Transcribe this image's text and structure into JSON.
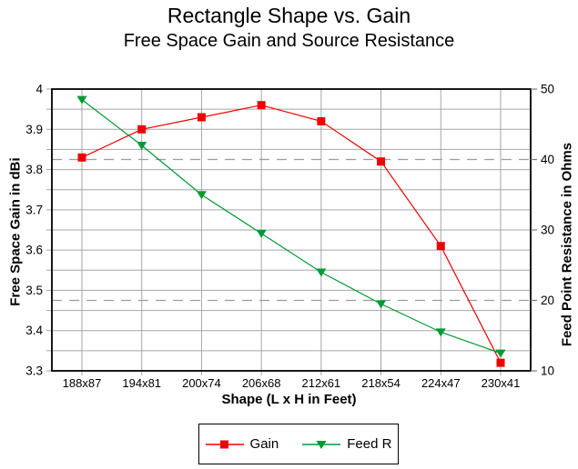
{
  "chart_data": {
    "type": "line",
    "title": "Rectangle Shape vs. Gain",
    "subtitle": "Free Space Gain and Source Resistance",
    "xlabel": "Shape (L x H in Feet)",
    "ylabel_left": "Free Space Gain in dBi",
    "ylabel_right": "Feed Point Resistance in Ohms",
    "categories": [
      "188x87",
      "194x81",
      "200x74",
      "206x68",
      "212x61",
      "218x54",
      "224x47",
      "230x41"
    ],
    "series": [
      {
        "name": "Gain",
        "axis": "left",
        "color": "#ee0000",
        "marker": "square",
        "values": [
          3.83,
          3.9,
          3.93,
          3.96,
          3.92,
          3.82,
          3.61,
          3.32
        ]
      },
      {
        "name": "Feed R",
        "axis": "right",
        "color": "#009933",
        "marker": "triangle-down",
        "values": [
          48.5,
          42,
          35,
          29.5,
          24,
          19.5,
          15.5,
          12.5
        ]
      }
    ],
    "left_axis": {
      "min": 3.3,
      "max": 4.0,
      "label_step": 0.1,
      "grid_step": 0.05,
      "tick_labels": [
        "4",
        "3.9",
        "3.8",
        "3.7",
        "3.6",
        "3.5",
        "3.4",
        "3.3"
      ]
    },
    "right_axis": {
      "min": 10,
      "max": 50,
      "label_step": 10,
      "tick_labels": [
        "50",
        "40",
        "30",
        "20",
        "10"
      ],
      "dashed_reference_lines": [
        40,
        20
      ]
    },
    "grid": true,
    "legend_position": "bottom",
    "colors": {
      "grid": "#a6a6a6",
      "dashed_line": "#9c9c9c",
      "border": "#000000",
      "background": "#ffffff",
      "text": "#000000"
    }
  }
}
